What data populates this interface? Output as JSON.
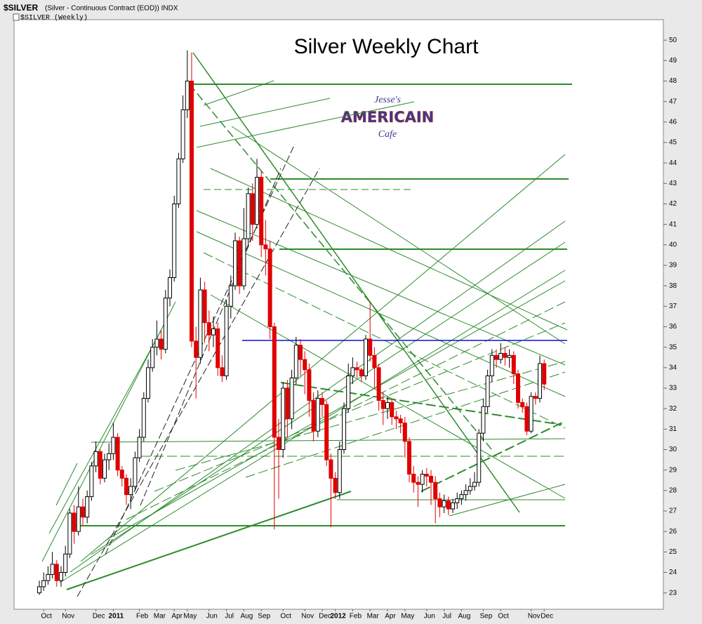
{
  "chart_data": {
    "type": "candlestick",
    "title": "Silver Weekly Chart",
    "symbol": "$SILVER",
    "description": "(Silver - Continuous Contract (EOD)) INDX",
    "subheader": "$SILVER (Weekly)",
    "logo": {
      "top": "Jesse's",
      "middle": "AMERICAIN",
      "bottom": "Cafe"
    },
    "up_color": "#ffffff",
    "down_color": "#e00000",
    "categories": [
      null,
      "Oct",
      null,
      null,
      null,
      null,
      "Nov",
      null,
      null,
      null,
      null,
      null,
      null,
      "Dec",
      null,
      null,
      null,
      "2011",
      null,
      null,
      null,
      null,
      null,
      "Feb",
      null,
      null,
      null,
      "Mar",
      null,
      null,
      null,
      "Apr",
      null,
      null,
      "May",
      null,
      null,
      null,
      null,
      "Jun",
      null,
      null,
      null,
      "Jul",
      null,
      null,
      null,
      "Aug",
      null,
      null,
      null,
      "Sep",
      null,
      null,
      null,
      null,
      "Oct",
      null,
      null,
      null,
      null,
      "Nov",
      null,
      null,
      null,
      "Dec",
      null,
      null,
      "2012",
      null,
      null,
      null,
      "Feb",
      null,
      null,
      null,
      "Mar",
      null,
      null,
      null,
      "Apr",
      null,
      null,
      null,
      "May",
      null,
      null,
      null,
      null,
      "Jun",
      null,
      null,
      null,
      "Jul",
      null,
      null,
      null,
      "Aug",
      null,
      null,
      null,
      null,
      "Sep",
      null,
      null,
      null,
      "Oct",
      null,
      null,
      null,
      null,
      null,
      null,
      "Nov",
      null,
      null,
      "Dec"
    ],
    "open": [
      23.0,
      23.3,
      23.6,
      23.9,
      24.4,
      23.6,
      24.0,
      24.9,
      26.9,
      26.0,
      27.2,
      26.7,
      27.7,
      29.2,
      29.9,
      28.6,
      29.5,
      29.8,
      30.6,
      29.0,
      28.6,
      27.8,
      28.2,
      29.6,
      30.6,
      32.5,
      34.0,
      35.0,
      35.4,
      34.9,
      37.4,
      38.4,
      42.0,
      44.2,
      46.6,
      48.0,
      35.3,
      34.5,
      37.8,
      36.2,
      35.6,
      35.9,
      34.0,
      33.6,
      37.0,
      38.0,
      40.2,
      38.0,
      40.3,
      42.5,
      41.0,
      43.3,
      40.0,
      39.8,
      36.0,
      30.6,
      30.0,
      33.0,
      31.5,
      33.5,
      35.1,
      34.4,
      33.9,
      32.4,
      30.9,
      32.5,
      32.2,
      29.5,
      28.6,
      27.9,
      30.0,
      32.0,
      33.6,
      34.0,
      33.9,
      33.6,
      35.4,
      34.6,
      34.0,
      32.4,
      32.0,
      32.3,
      31.6,
      31.5,
      31.3,
      30.4,
      28.8,
      28.4,
      28.3,
      28.8,
      28.7,
      28.4,
      27.6,
      27.2,
      27.5,
      27.1,
      27.4,
      27.6,
      27.8,
      28.0,
      28.2,
      28.4,
      30.8,
      32.1,
      33.6,
      34.6,
      34.4,
      34.7,
      34.5,
      34.6,
      33.7,
      32.3,
      32.1,
      30.9,
      32.6,
      32.5,
      34.2
    ],
    "high": [
      23.6,
      24.0,
      24.3,
      25.0,
      24.6,
      24.3,
      25.3,
      27.1,
      27.3,
      28.2,
      27.6,
      28.0,
      29.4,
      30.4,
      30.0,
      29.8,
      30.3,
      31.3,
      30.8,
      29.2,
      28.8,
      28.6,
      29.9,
      31.0,
      32.8,
      34.4,
      35.4,
      36.3,
      35.8,
      37.8,
      38.8,
      42.4,
      44.5,
      47.3,
      49.5,
      49.4,
      36.0,
      38.4,
      38.2,
      36.8,
      36.5,
      36.2,
      34.6,
      37.3,
      38.5,
      40.6,
      40.4,
      41.8,
      42.8,
      43.0,
      44.2,
      43.6,
      41.2,
      40.2,
      36.2,
      31.5,
      33.3,
      33.4,
      33.9,
      35.5,
      35.4,
      34.8,
      34.2,
      32.8,
      32.9,
      32.8,
      32.4,
      29.8,
      28.9,
      30.4,
      32.3,
      34.2,
      34.5,
      34.3,
      34.0,
      35.6,
      37.2,
      35.0,
      34.2,
      32.8,
      32.6,
      32.5,
      31.9,
      31.7,
      31.6,
      30.6,
      29.2,
      28.7,
      29.0,
      29.1,
      29.0,
      28.7,
      27.9,
      27.8,
      27.7,
      27.6,
      27.9,
      28.0,
      28.3,
      28.6,
      28.9,
      31.0,
      32.5,
      33.9,
      34.9,
      34.9,
      35.2,
      35.0,
      34.9,
      34.8,
      33.9,
      32.5,
      32.3,
      32.8,
      32.8,
      34.6,
      34.4
    ],
    "low": [
      22.9,
      23.1,
      23.4,
      23.7,
      23.3,
      23.3,
      23.8,
      24.7,
      25.4,
      25.8,
      26.3,
      26.4,
      27.5,
      28.9,
      28.3,
      28.4,
      29.0,
      29.5,
      28.7,
      28.2,
      27.3,
      27.1,
      28.0,
      29.4,
      30.4,
      32.3,
      33.8,
      34.6,
      34.4,
      34.7,
      37.0,
      38.2,
      41.8,
      44.0,
      46.2,
      35.0,
      32.5,
      34.2,
      35.2,
      34.8,
      35.0,
      33.6,
      33.3,
      33.4,
      36.4,
      37.8,
      37.6,
      37.8,
      40.0,
      40.2,
      40.8,
      39.4,
      38.5,
      35.4,
      26.1,
      27.6,
      29.6,
      30.6,
      31.0,
      33.2,
      33.6,
      32.7,
      31.6,
      30.4,
      30.6,
      31.6,
      29.2,
      26.2,
      27.6,
      27.6,
      29.8,
      31.8,
      33.2,
      33.5,
      33.3,
      33.4,
      34.3,
      33.0,
      31.9,
      31.2,
      31.5,
      31.2,
      31.0,
      30.8,
      29.6,
      28.4,
      27.9,
      27.2,
      27.9,
      28.2,
      27.3,
      26.4,
      26.7,
      26.9,
      26.8,
      26.9,
      27.1,
      27.3,
      27.5,
      27.8,
      28.0,
      28.2,
      30.4,
      31.8,
      33.3,
      34.0,
      34.2,
      34.1,
      34.0,
      33.2,
      32.0,
      31.8,
      30.7,
      30.8,
      32.2,
      32.3,
      32.9
    ],
    "close": [
      23.3,
      23.6,
      23.9,
      24.4,
      23.6,
      24.0,
      24.9,
      26.9,
      26.0,
      27.2,
      26.7,
      27.7,
      29.2,
      29.9,
      28.6,
      29.5,
      29.8,
      30.6,
      29.0,
      28.6,
      27.8,
      28.2,
      29.6,
      30.6,
      32.5,
      34.0,
      35.0,
      35.4,
      34.9,
      37.4,
      38.4,
      42.0,
      44.2,
      46.6,
      48.0,
      35.3,
      34.5,
      37.8,
      36.2,
      35.6,
      35.9,
      34.0,
      33.6,
      37.0,
      38.0,
      40.2,
      38.0,
      40.3,
      42.5,
      41.0,
      43.3,
      40.0,
      39.8,
      36.0,
      30.6,
      30.0,
      33.0,
      31.5,
      33.5,
      35.1,
      34.4,
      33.9,
      32.4,
      30.9,
      32.5,
      32.2,
      29.5,
      28.6,
      27.9,
      30.0,
      32.0,
      33.6,
      34.0,
      33.9,
      33.6,
      35.4,
      34.6,
      34.0,
      32.4,
      32.0,
      32.3,
      31.6,
      31.5,
      31.3,
      30.4,
      28.8,
      28.4,
      28.3,
      28.8,
      28.7,
      28.4,
      27.6,
      27.2,
      27.5,
      27.1,
      27.4,
      27.6,
      27.8,
      28.0,
      28.2,
      28.4,
      30.8,
      32.1,
      33.6,
      34.6,
      34.4,
      34.7,
      34.5,
      34.6,
      33.7,
      32.3,
      32.1,
      30.9,
      32.6,
      32.5,
      34.2,
      33.2
    ],
    "ylim": [
      22.2,
      51.0
    ],
    "yticks": [
      23,
      24,
      25,
      26,
      27,
      28,
      29,
      30,
      31,
      32,
      33,
      34,
      35,
      36,
      37,
      38,
      39,
      40,
      41,
      42,
      43,
      44,
      45,
      46,
      47,
      48,
      49,
      50
    ]
  }
}
